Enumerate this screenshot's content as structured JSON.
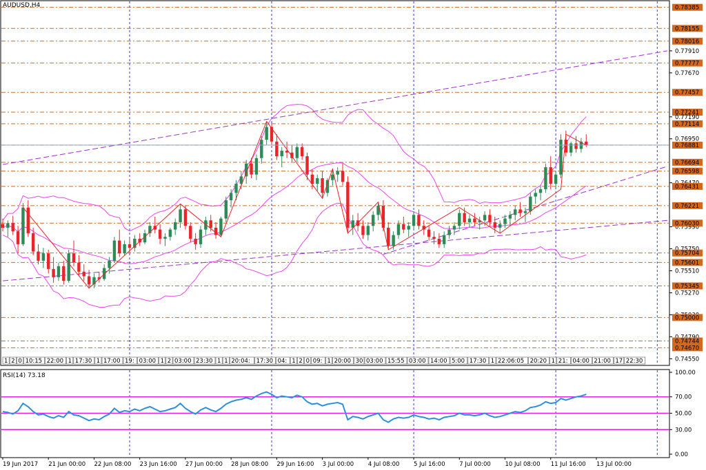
{
  "symbol_label": "AUDUSD,H4",
  "rsi_label": "RSI(14) 73.18",
  "colors": {
    "bull": "#2e8b57",
    "bear": "#e8252a",
    "bollinger": "#ee44ee",
    "channel": "#9933cc",
    "hline": "#d2691e",
    "current": "#8fa8c8",
    "rsi_line": "#2b8fe0",
    "rsi_levels": "#e020e0",
    "zigzag": "#e8252a",
    "vgrid": "#3a3ad0"
  },
  "price_axis_ticks": [
    "0.78385",
    "0.78155",
    "0.78016",
    "0.77910",
    "0.77777",
    "0.77670",
    "0.77457",
    "0.77241",
    "0.77190",
    "0.77114",
    "0.76950",
    "0.76881",
    "0.76694",
    "0.76598",
    "0.76470",
    "0.76431",
    "0.76221",
    "0.75990",
    "0.76030",
    "0.75750",
    "0.75704",
    "0.75601",
    "0.75510",
    "0.75345",
    "0.75270",
    "0.75030",
    "0.75000",
    "0.74790",
    "0.74744",
    "0.74670",
    "0.74550"
  ],
  "highlighted_levels": [
    "0.78385",
    "0.78155",
    "0.78016",
    "0.77777",
    "0.77457",
    "0.77241",
    "0.77114",
    "0.76881",
    "0.76694",
    "0.76598",
    "0.76431",
    "0.76221",
    "0.76030",
    "0.75704",
    "0.75601",
    "0.75345",
    "0.75000",
    "0.74744",
    "0.74670"
  ],
  "time_axis_labels": [
    "19 Jun 2017",
    "21 Jun 00:00",
    "22 Jun 08:00",
    "23 Jun 16:00",
    "27 Jun 00:00",
    "28 Jun 08:00",
    "29 Jun 16:00",
    "3 Jul 00:00",
    "4 Jul 08:00",
    "5 Jul 16:00",
    "7 Jul 00:00",
    "10 Jul 08:00",
    "11 Jul 16:00",
    "13 Jul 00:00"
  ],
  "event_labels": [
    "1",
    "2",
    "0",
    "10:15",
    "22:00",
    "1",
    "17:30",
    "1",
    "17:00",
    "19:",
    "03:00",
    "1",
    "2",
    "03:00",
    "23:30",
    "1",
    "1",
    "20:04:",
    "17:30",
    "04:",
    "1",
    "2",
    "0",
    "09:",
    "1",
    "20:00",
    "30",
    "03:00",
    "15:55",
    "03:00",
    "14:00",
    "5:00",
    "17:30",
    "1",
    "22:06:05",
    "20:20",
    "1",
    "21:",
    "04:00",
    "21:00",
    "17",
    "22:30"
  ],
  "rsi_axis_ticks": [
    "100.00",
    "70.00",
    "50.00",
    "30.00",
    "0.00"
  ],
  "chart_data": {
    "type": "candlestick",
    "symbol": "AUDUSD",
    "timeframe": "H4",
    "price_range": [
      0.745,
      0.7845
    ],
    "current_price": 0.76881,
    "x_range": [
      0,
      131
    ],
    "horizontal_levels": [
      0.78385,
      0.78155,
      0.78016,
      0.77777,
      0.77457,
      0.77241,
      0.77114,
      0.76881,
      0.76694,
      0.76598,
      0.76431,
      0.76221,
      0.7603,
      0.75704,
      0.75601,
      0.75345,
      0.75,
      0.74744,
      0.7467
    ],
    "candles": [
      [
        0.7602,
        0.7608,
        0.7594,
        0.7598
      ],
      [
        0.7598,
        0.7606,
        0.7588,
        0.7603
      ],
      [
        0.7603,
        0.7611,
        0.759,
        0.7594
      ],
      [
        0.7594,
        0.76,
        0.757,
        0.758
      ],
      [
        0.758,
        0.7625,
        0.7578,
        0.762
      ],
      [
        0.762,
        0.7628,
        0.7588,
        0.7592
      ],
      [
        0.7592,
        0.7598,
        0.7568,
        0.7572
      ],
      [
        0.7572,
        0.758,
        0.7558,
        0.7562
      ],
      [
        0.7562,
        0.7576,
        0.7554,
        0.757
      ],
      [
        0.757,
        0.7574,
        0.7548,
        0.7553
      ],
      [
        0.7553,
        0.7566,
        0.7538,
        0.7544
      ],
      [
        0.7544,
        0.756,
        0.754,
        0.7556
      ],
      [
        0.7556,
        0.7562,
        0.7536,
        0.754
      ],
      [
        0.754,
        0.7574,
        0.7538,
        0.757
      ],
      [
        0.757,
        0.7584,
        0.7556,
        0.756
      ],
      [
        0.756,
        0.7568,
        0.7546,
        0.755
      ],
      [
        0.755,
        0.7558,
        0.754,
        0.7545
      ],
      [
        0.7545,
        0.7552,
        0.7532,
        0.7536
      ],
      [
        0.7536,
        0.7548,
        0.7532,
        0.7544
      ],
      [
        0.7544,
        0.755,
        0.7538,
        0.7542
      ],
      [
        0.7542,
        0.7558,
        0.754,
        0.7554
      ],
      [
        0.7554,
        0.7566,
        0.7548,
        0.7562
      ],
      [
        0.7562,
        0.7588,
        0.756,
        0.7584
      ],
      [
        0.7584,
        0.7596,
        0.7566,
        0.757
      ],
      [
        0.757,
        0.7584,
        0.7568,
        0.758
      ],
      [
        0.758,
        0.7586,
        0.757,
        0.7576
      ],
      [
        0.7576,
        0.759,
        0.7572,
        0.7586
      ],
      [
        0.7586,
        0.7592,
        0.7578,
        0.7582
      ],
      [
        0.7582,
        0.7596,
        0.758,
        0.7592
      ],
      [
        0.7592,
        0.7604,
        0.7588,
        0.76
      ],
      [
        0.76,
        0.761,
        0.7592,
        0.7596
      ],
      [
        0.7596,
        0.7602,
        0.758,
        0.7586
      ],
      [
        0.7586,
        0.7592,
        0.7578,
        0.7588
      ],
      [
        0.7588,
        0.7598,
        0.7584,
        0.7596
      ],
      [
        0.7596,
        0.7608,
        0.759,
        0.7604
      ],
      [
        0.7604,
        0.7624,
        0.7598,
        0.7618
      ],
      [
        0.7618,
        0.7622,
        0.7596,
        0.76
      ],
      [
        0.76,
        0.7604,
        0.7582,
        0.7586
      ],
      [
        0.7586,
        0.7592,
        0.7574,
        0.758
      ],
      [
        0.758,
        0.76,
        0.7576,
        0.7596
      ],
      [
        0.7596,
        0.761,
        0.759,
        0.7606
      ],
      [
        0.7606,
        0.7612,
        0.7594,
        0.7598
      ],
      [
        0.7598,
        0.7604,
        0.7586,
        0.759
      ],
      [
        0.759,
        0.761,
        0.7588,
        0.7608
      ],
      [
        0.7608,
        0.7632,
        0.7604,
        0.7628
      ],
      [
        0.7628,
        0.764,
        0.762,
        0.7636
      ],
      [
        0.7636,
        0.765,
        0.7628,
        0.7646
      ],
      [
        0.7646,
        0.766,
        0.764,
        0.7654
      ],
      [
        0.7654,
        0.7672,
        0.7646,
        0.7668
      ],
      [
        0.7668,
        0.7674,
        0.7652,
        0.7656
      ],
      [
        0.7656,
        0.7678,
        0.765,
        0.7674
      ],
      [
        0.7674,
        0.7698,
        0.7668,
        0.7694
      ],
      [
        0.7694,
        0.7714,
        0.7688,
        0.7708
      ],
      [
        0.7708,
        0.7712,
        0.7688,
        0.7692
      ],
      [
        0.7692,
        0.77,
        0.7672,
        0.7676
      ],
      [
        0.7676,
        0.7686,
        0.7664,
        0.7682
      ],
      [
        0.7682,
        0.7692,
        0.7674,
        0.768
      ],
      [
        0.768,
        0.7688,
        0.767,
        0.7674
      ],
      [
        0.7674,
        0.769,
        0.767,
        0.7686
      ],
      [
        0.7686,
        0.769,
        0.7672,
        0.7676
      ],
      [
        0.7676,
        0.768,
        0.765,
        0.7656
      ],
      [
        0.7656,
        0.7662,
        0.764,
        0.7646
      ],
      [
        0.7646,
        0.7656,
        0.7638,
        0.7652
      ],
      [
        0.7652,
        0.766,
        0.763,
        0.7636
      ],
      [
        0.7636,
        0.7652,
        0.7632,
        0.765
      ],
      [
        0.765,
        0.7662,
        0.7644,
        0.7656
      ],
      [
        0.7656,
        0.7664,
        0.7648,
        0.766
      ],
      [
        0.766,
        0.7668,
        0.7644,
        0.7648
      ],
      [
        0.7648,
        0.7654,
        0.7592,
        0.7598
      ],
      [
        0.7598,
        0.7612,
        0.759,
        0.7606
      ],
      [
        0.7606,
        0.7614,
        0.7594,
        0.76
      ],
      [
        0.76,
        0.7606,
        0.7586,
        0.759
      ],
      [
        0.759,
        0.7604,
        0.7584,
        0.76
      ],
      [
        0.76,
        0.7616,
        0.7594,
        0.7612
      ],
      [
        0.7612,
        0.7626,
        0.7606,
        0.7622
      ],
      [
        0.7622,
        0.7628,
        0.7594,
        0.7598
      ],
      [
        0.7598,
        0.7604,
        0.7574,
        0.7578
      ],
      [
        0.7578,
        0.7594,
        0.7574,
        0.759
      ],
      [
        0.759,
        0.7606,
        0.7586,
        0.7602
      ],
      [
        0.7602,
        0.761,
        0.7592,
        0.7596
      ],
      [
        0.7596,
        0.7604,
        0.7588,
        0.76
      ],
      [
        0.76,
        0.7616,
        0.7596,
        0.7612
      ],
      [
        0.7612,
        0.7618,
        0.7596,
        0.76
      ],
      [
        0.76,
        0.7606,
        0.759,
        0.7596
      ],
      [
        0.7596,
        0.76,
        0.7584,
        0.7588
      ],
      [
        0.7588,
        0.7594,
        0.758,
        0.7586
      ],
      [
        0.7586,
        0.7592,
        0.7576,
        0.758
      ],
      [
        0.758,
        0.7594,
        0.7576,
        0.759
      ],
      [
        0.759,
        0.76,
        0.7586,
        0.7596
      ],
      [
        0.7596,
        0.7604,
        0.759,
        0.76
      ],
      [
        0.76,
        0.7618,
        0.7596,
        0.7614
      ],
      [
        0.7614,
        0.762,
        0.76,
        0.7604
      ],
      [
        0.7604,
        0.7612,
        0.7598,
        0.7608
      ],
      [
        0.7608,
        0.7614,
        0.76,
        0.7604
      ],
      [
        0.7604,
        0.761,
        0.7596,
        0.7606
      ],
      [
        0.7606,
        0.7616,
        0.76,
        0.7612
      ],
      [
        0.7612,
        0.7618,
        0.76,
        0.7604
      ],
      [
        0.7604,
        0.761,
        0.7592,
        0.7598
      ],
      [
        0.7598,
        0.7606,
        0.7592,
        0.7602
      ],
      [
        0.7602,
        0.7612,
        0.7598,
        0.7608
      ],
      [
        0.7608,
        0.7616,
        0.76,
        0.7612
      ],
      [
        0.7612,
        0.7622,
        0.7606,
        0.7618
      ],
      [
        0.7618,
        0.7626,
        0.761,
        0.7614
      ],
      [
        0.7614,
        0.762,
        0.7604,
        0.7616
      ],
      [
        0.7616,
        0.7636,
        0.7612,
        0.7632
      ],
      [
        0.7632,
        0.764,
        0.7624,
        0.7636
      ],
      [
        0.7636,
        0.7644,
        0.7628,
        0.764
      ],
      [
        0.764,
        0.7668,
        0.7636,
        0.7664
      ],
      [
        0.7664,
        0.7676,
        0.764,
        0.7646
      ],
      [
        0.7646,
        0.766,
        0.764,
        0.7656
      ],
      [
        0.7656,
        0.77,
        0.7652,
        0.7694
      ],
      [
        0.7694,
        0.7704,
        0.7676,
        0.768
      ],
      [
        0.768,
        0.7692,
        0.7676,
        0.769
      ],
      [
        0.769,
        0.7698,
        0.768,
        0.7684
      ],
      [
        0.7684,
        0.7696,
        0.768,
        0.7692
      ],
      [
        0.7692,
        0.77,
        0.7686,
        0.7688
      ]
    ],
    "rsi": {
      "period": 14,
      "last": 73.18,
      "levels": [
        70,
        50,
        30
      ],
      "range": [
        0,
        100
      ],
      "values": [
        52,
        51,
        49,
        53,
        62,
        58,
        52,
        48,
        49,
        46,
        44,
        47,
        45,
        52,
        48,
        47,
        44,
        41,
        43,
        42,
        46,
        49,
        56,
        51,
        53,
        52,
        55,
        53,
        56,
        58,
        55,
        52,
        53,
        55,
        57,
        62,
        56,
        52,
        49,
        54,
        57,
        54,
        52,
        56,
        61,
        64,
        66,
        67,
        69,
        67,
        71,
        74,
        76,
        73,
        69,
        71,
        70,
        69,
        72,
        70,
        64,
        61,
        62,
        59,
        61,
        62,
        63,
        61,
        42,
        46,
        45,
        43,
        46,
        48,
        50,
        42,
        39,
        43,
        45,
        44,
        45,
        48,
        46,
        45,
        43,
        44,
        42,
        45,
        46,
        47,
        50,
        48,
        48,
        47,
        48,
        50,
        47,
        45,
        46,
        48,
        50,
        52,
        51,
        53,
        57,
        58,
        60,
        64,
        62,
        63,
        68,
        66,
        68,
        70,
        71,
        73
      ]
    }
  }
}
